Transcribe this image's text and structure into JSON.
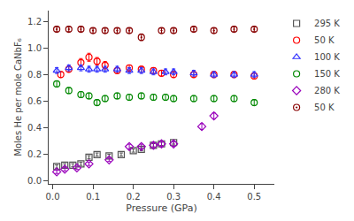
{
  "chart_data": {
    "type": "scatter",
    "xlabel": "Pressure (GPa)",
    "ylabel": "Moles He per mole CaNbF₆",
    "xlim": [
      -0.01,
      0.55
    ],
    "ylim": [
      -0.02,
      1.28
    ],
    "xticks": [
      {
        "value": 0.0,
        "label": "0.0"
      },
      0.1,
      0.2,
      0.3,
      0.4,
      0.5
    ],
    "yticks": [
      {
        "value": 0.0,
        "label": "0.0"
      },
      0.2,
      0.4,
      0.6,
      0.8,
      {
        "value": 1.0,
        "label": "1.0"
      },
      1.2
    ],
    "grid": false,
    "legend": "right",
    "series": [
      {
        "name": "295 K",
        "color": "#555555",
        "marker": "square-open",
        "x": [
          0.01,
          0.03,
          0.05,
          0.07,
          0.09,
          0.11,
          0.14,
          0.17,
          0.2,
          0.22,
          0.25,
          0.27,
          0.3
        ],
        "values": [
          0.11,
          0.12,
          0.12,
          0.13,
          0.18,
          0.2,
          0.19,
          0.2,
          0.23,
          0.24,
          0.27,
          0.28,
          0.29
        ],
        "yerr": [
          0.012,
          0.012,
          0.012,
          0.012,
          0.012,
          0.012,
          0.012,
          0.012,
          0.012,
          0.012,
          0.012,
          0.012,
          0.012
        ]
      },
      {
        "name": "50 K",
        "color": "#ff0000",
        "marker": "circle-open",
        "x": [
          0.02,
          0.04,
          0.07,
          0.09,
          0.11,
          0.13,
          0.16,
          0.19,
          0.22,
          0.25,
          0.27,
          0.3,
          0.35,
          0.4,
          0.45,
          0.5
        ],
        "values": [
          0.8,
          0.84,
          0.89,
          0.93,
          0.9,
          0.87,
          0.83,
          0.85,
          0.84,
          0.83,
          0.81,
          0.8,
          0.8,
          0.8,
          0.8,
          0.79
        ],
        "yerr": [
          0.022,
          0.022,
          0.03,
          0.03,
          0.028,
          0.028,
          0.022,
          0.022,
          0.022,
          0.022,
          0.022,
          0.022,
          0.022,
          0.022,
          0.022,
          0.022
        ]
      },
      {
        "name": "100 K",
        "color": "#3333ff",
        "marker": "triangle-up-open",
        "x": [
          0.01,
          0.04,
          0.07,
          0.09,
          0.11,
          0.13,
          0.16,
          0.19,
          0.22,
          0.25,
          0.28,
          0.3,
          0.35,
          0.4,
          0.45,
          0.5
        ],
        "values": [
          0.83,
          0.85,
          0.85,
          0.84,
          0.84,
          0.84,
          0.84,
          0.83,
          0.83,
          0.82,
          0.82,
          0.82,
          0.81,
          0.8,
          0.8,
          0.8
        ],
        "yerr": [
          0.022,
          0.022,
          0.022,
          0.022,
          0.022,
          0.022,
          0.022,
          0.022,
          0.022,
          0.022,
          0.022,
          0.022,
          0.022,
          0.022,
          0.022,
          0.022
        ]
      },
      {
        "name": "150 K",
        "color": "#008800",
        "marker": "circle-open",
        "x": [
          0.01,
          0.04,
          0.07,
          0.09,
          0.11,
          0.13,
          0.16,
          0.19,
          0.22,
          0.25,
          0.28,
          0.3,
          0.35,
          0.4,
          0.45,
          0.5
        ],
        "values": [
          0.73,
          0.68,
          0.65,
          0.64,
          0.59,
          0.62,
          0.64,
          0.63,
          0.64,
          0.63,
          0.63,
          0.62,
          0.62,
          0.62,
          0.62,
          0.59
        ],
        "yerr": [
          0.022,
          0.022,
          0.022,
          0.022,
          0.022,
          0.022,
          0.022,
          0.022,
          0.022,
          0.022,
          0.022,
          0.022,
          0.022,
          0.022,
          0.022,
          0.022
        ]
      },
      {
        "name": "280 K",
        "color": "#9900bb",
        "marker": "diamond-open",
        "x": [
          0.01,
          0.03,
          0.06,
          0.09,
          0.14,
          0.19,
          0.22,
          0.25,
          0.27,
          0.3,
          0.37,
          0.4
        ],
        "values": [
          0.07,
          0.09,
          0.1,
          0.13,
          0.16,
          0.26,
          0.26,
          0.27,
          0.28,
          0.28,
          0.41,
          0.49
        ],
        "yerr": [
          0.012,
          0.012,
          0.012,
          0.012,
          0.012,
          0.018,
          0.018,
          0.018,
          0.018,
          0.018,
          0.022,
          0.022
        ]
      },
      {
        "name": "50 K",
        "color": "#880000",
        "marker": "circle-open-dot",
        "x": [
          0.01,
          0.04,
          0.07,
          0.1,
          0.13,
          0.16,
          0.19,
          0.22,
          0.27,
          0.3,
          0.35,
          0.4,
          0.45,
          0.5
        ],
        "values": [
          1.14,
          1.14,
          1.14,
          1.13,
          1.13,
          1.13,
          1.13,
          1.08,
          1.13,
          1.13,
          1.14,
          1.13,
          1.14,
          1.14
        ],
        "yerr": [
          0.018,
          0.018,
          0.018,
          0.018,
          0.018,
          0.018,
          0.018,
          0.025,
          0.018,
          0.018,
          0.018,
          0.018,
          0.018,
          0.018
        ]
      }
    ]
  }
}
